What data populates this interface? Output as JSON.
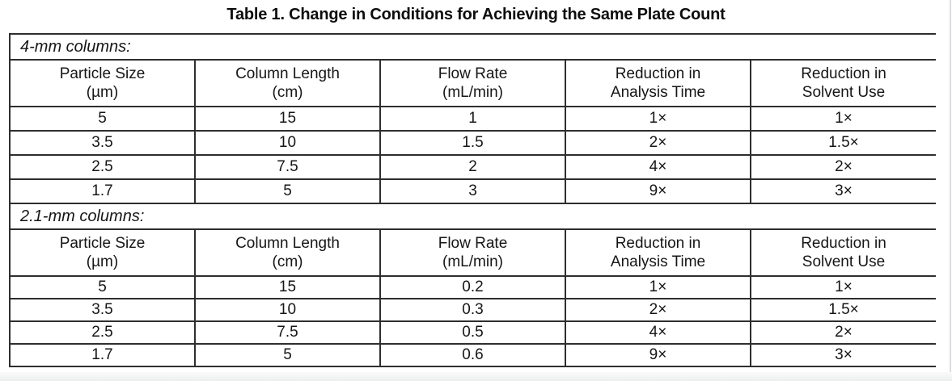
{
  "title": "Table 1. Change in Conditions for Achieving the Same Plate Count",
  "colors": {
    "rule_line": "#2e2e2e",
    "text": "#161616",
    "footer_strip": "#edeff0",
    "page_edge_line": "#dcddde",
    "background": "#ffffff"
  },
  "table": {
    "sections": [
      {
        "label": "4-mm columns:",
        "headers": [
          {
            "line1": "Particle Size",
            "line2": "(µm)"
          },
          {
            "line1": "Column Length",
            "line2": "(cm)"
          },
          {
            "line1": "Flow Rate",
            "line2": "(mL/min)"
          },
          {
            "line1": "Reduction in",
            "line2": "Analysis Time"
          },
          {
            "line1": "Reduction in",
            "line2": "Solvent Use"
          }
        ],
        "rows": [
          [
            "5",
            "15",
            "1",
            "1×",
            "1×"
          ],
          [
            "3.5",
            "10",
            "1.5",
            "2×",
            "1.5×"
          ],
          [
            "2.5",
            "7.5",
            "2",
            "4×",
            "2×"
          ],
          [
            "1.7",
            "5",
            "3",
            "9×",
            "3×"
          ]
        ]
      },
      {
        "label": "2.1-mm columns:",
        "headers": [
          {
            "line1": "Particle Size",
            "line2": "(µm)"
          },
          {
            "line1": "Column Length",
            "line2": "(cm)"
          },
          {
            "line1": "Flow Rate",
            "line2": "(mL/min)"
          },
          {
            "line1": "Reduction in",
            "line2": "Analysis Time"
          },
          {
            "line1": "Reduction in",
            "line2": "Solvent Use"
          }
        ],
        "rows": [
          [
            "5",
            "15",
            "0.2",
            "1×",
            "1×"
          ],
          [
            "3.5",
            "10",
            "0.3",
            "2×",
            "1.5×"
          ],
          [
            "2.5",
            "7.5",
            "0.5",
            "4×",
            "2×"
          ],
          [
            "1.7",
            "5",
            "0.6",
            "9×",
            "3×"
          ]
        ]
      }
    ]
  }
}
